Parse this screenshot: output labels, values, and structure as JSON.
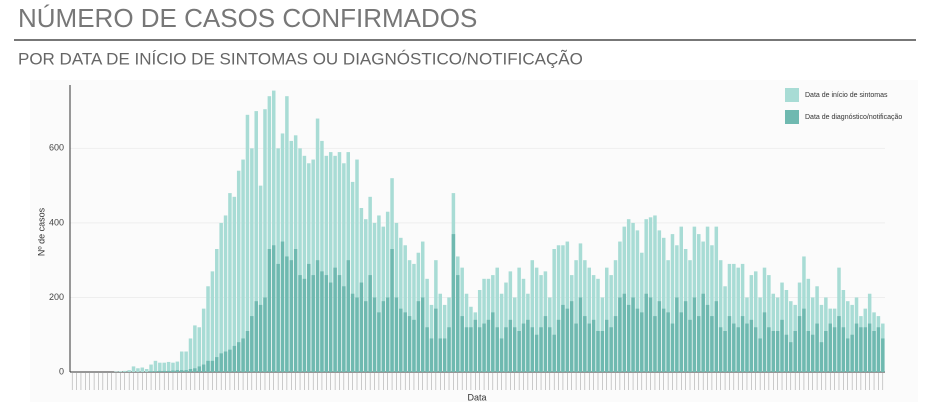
{
  "header": {
    "title": "NÚMERO DE CASOS CONFIRMADOS",
    "subtitle": "POR DATA DE INÍCIO DE SINTOMAS OU DIAGNÓSTICO/NOTIFICAÇÃO"
  },
  "chart_data": {
    "type": "bar",
    "mode": "overlay",
    "x_label": "Data",
    "y_label": "Nº de casos",
    "ylim": [
      0,
      770
    ],
    "yticks": [
      0,
      200,
      400,
      600
    ],
    "grid": true,
    "legend": "top-right",
    "series": [
      {
        "name": "Data de início de sintomas",
        "color": "#a8dcd5",
        "values": [
          0,
          0,
          0,
          0,
          0,
          0,
          0,
          0,
          0,
          0,
          1,
          2,
          3,
          5,
          15,
          10,
          12,
          8,
          20,
          30,
          25,
          25,
          27,
          25,
          28,
          55,
          55,
          90,
          125,
          120,
          170,
          230,
          270,
          330,
          400,
          420,
          480,
          470,
          540,
          570,
          690,
          600,
          700,
          500,
          705,
          740,
          755,
          600,
          640,
          740,
          620,
          635,
          600,
          580,
          560,
          570,
          680,
          620,
          580,
          590,
          580,
          590,
          560,
          590,
          510,
          570,
          440,
          410,
          470,
          400,
          420,
          390,
          430,
          520,
          400,
          360,
          340,
          300,
          290,
          320,
          350,
          250,
          180,
          300,
          210,
          180,
          200,
          480,
          310,
          280,
          210,
          175,
          160,
          220,
          250,
          250,
          260,
          280,
          210,
          240,
          270,
          200,
          280,
          250,
          210,
          300,
          280,
          260,
          270,
          200,
          330,
          340,
          340,
          350,
          260,
          300,
          345,
          300,
          280,
          260,
          250,
          200,
          280,
          260,
          300,
          350,
          390,
          410,
          400,
          380,
          320,
          410,
          415,
          420,
          380,
          360,
          300,
          370,
          340,
          390,
          330,
          300,
          390,
          370,
          350,
          390,
          340,
          390,
          300,
          230,
          290,
          290,
          280,
          290,
          200,
          260,
          270,
          200,
          280,
          260,
          210,
          200,
          240,
          220,
          190,
          180,
          240,
          310,
          250,
          200,
          230,
          180,
          200,
          170,
          170,
          280,
          220,
          190,
          180,
          200,
          150,
          170,
          210,
          160,
          150,
          130
        ]
      },
      {
        "name": "Data de diagnóstico/notificação",
        "color": "#6fb9b0",
        "values": [
          0,
          0,
          0,
          0,
          0,
          0,
          0,
          0,
          0,
          0,
          0,
          0,
          0,
          0,
          0,
          0,
          0,
          0,
          2,
          2,
          3,
          3,
          3,
          4,
          5,
          5,
          5,
          8,
          10,
          15,
          20,
          30,
          30,
          40,
          50,
          55,
          60,
          70,
          80,
          90,
          110,
          150,
          190,
          180,
          200,
          330,
          340,
          290,
          350,
          310,
          300,
          330,
          260,
          250,
          290,
          260,
          300,
          270,
          260,
          240,
          280,
          260,
          230,
          300,
          210,
          200,
          240,
          190,
          260,
          200,
          160,
          190,
          200,
          330,
          200,
          170,
          160,
          150,
          140,
          190,
          200,
          120,
          90,
          170,
          90,
          90,
          120,
          370,
          260,
          150,
          120,
          120,
          140,
          120,
          130,
          140,
          160,
          120,
          90,
          120,
          140,
          120,
          110,
          130,
          140,
          120,
          100,
          120,
          150,
          120,
          100,
          140,
          180,
          170,
          190,
          130,
          200,
          150,
          130,
          140,
          110,
          110,
          140,
          120,
          150,
          200,
          210,
          180,
          200,
          170,
          160,
          210,
          200,
          150,
          190,
          170,
          160,
          130,
          200,
          160,
          190,
          140,
          200,
          150,
          210,
          180,
          150,
          190,
          120,
          110,
          150,
          130,
          120,
          150,
          130,
          140,
          120,
          90,
          160,
          120,
          110,
          110,
          140,
          100,
          80,
          110,
          150,
          170,
          110,
          100,
          130,
          80,
          110,
          130,
          120,
          150,
          120,
          90,
          100,
          130,
          120,
          120,
          130,
          110,
          120,
          90
        ]
      }
    ]
  }
}
